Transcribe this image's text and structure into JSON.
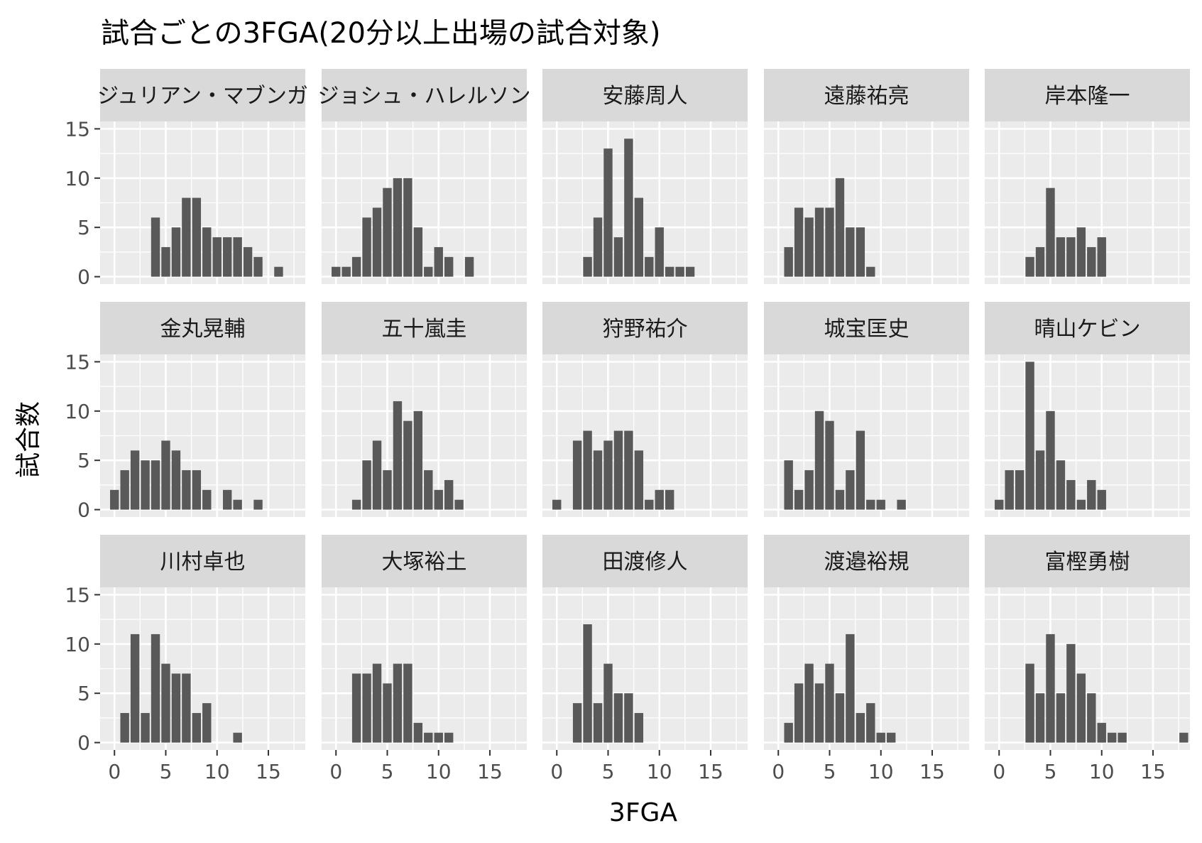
{
  "chart_data": {
    "type": "bar",
    "title": "試合ごとの3FGA(20分以上出場の試合対象)",
    "xlabel": "3FGA",
    "ylabel": "試合数",
    "xlim": [
      -1.4,
      18.6
    ],
    "ylim": [
      -0.75,
      15.75
    ],
    "x_ticks": [
      0,
      5,
      10,
      15
    ],
    "y_ticks": [
      0,
      5,
      10,
      15
    ],
    "x_tick_labels": [
      "0",
      "5",
      "10",
      "15"
    ],
    "y_tick_labels": [
      "0",
      "5",
      "10",
      "15"
    ],
    "grid": true,
    "bar_color": "#595959",
    "panel_color": "#ebebeb",
    "strip_color": "#d9d9d9",
    "panels": [
      {
        "name": "ジュリアン・マブンガ",
        "bars": [
          {
            "x": 4,
            "y": 6
          },
          {
            "x": 5,
            "y": 3
          },
          {
            "x": 6,
            "y": 5
          },
          {
            "x": 7,
            "y": 8
          },
          {
            "x": 8,
            "y": 8
          },
          {
            "x": 9,
            "y": 5
          },
          {
            "x": 10,
            "y": 4
          },
          {
            "x": 11,
            "y": 4
          },
          {
            "x": 12,
            "y": 4
          },
          {
            "x": 13,
            "y": 3
          },
          {
            "x": 14,
            "y": 2
          },
          {
            "x": 16,
            "y": 1
          }
        ]
      },
      {
        "name": "ジョシュ・ハレルソン",
        "bars": [
          {
            "x": 0,
            "y": 1
          },
          {
            "x": 1,
            "y": 1
          },
          {
            "x": 2,
            "y": 2
          },
          {
            "x": 3,
            "y": 6
          },
          {
            "x": 4,
            "y": 7
          },
          {
            "x": 5,
            "y": 9
          },
          {
            "x": 6,
            "y": 10
          },
          {
            "x": 7,
            "y": 10
          },
          {
            "x": 8,
            "y": 5
          },
          {
            "x": 9,
            "y": 1
          },
          {
            "x": 10,
            "y": 3
          },
          {
            "x": 11,
            "y": 2
          },
          {
            "x": 13,
            "y": 2
          }
        ]
      },
      {
        "name": "安藤周人",
        "bars": [
          {
            "x": 3,
            "y": 2
          },
          {
            "x": 4,
            "y": 6
          },
          {
            "x": 5,
            "y": 13
          },
          {
            "x": 6,
            "y": 4
          },
          {
            "x": 7,
            "y": 14
          },
          {
            "x": 8,
            "y": 8
          },
          {
            "x": 9,
            "y": 2
          },
          {
            "x": 10,
            "y": 5
          },
          {
            "x": 11,
            "y": 1
          },
          {
            "x": 12,
            "y": 1
          },
          {
            "x": 13,
            "y": 1
          }
        ]
      },
      {
        "name": "遠藤祐亮",
        "bars": [
          {
            "x": 1,
            "y": 3
          },
          {
            "x": 2,
            "y": 7
          },
          {
            "x": 3,
            "y": 6
          },
          {
            "x": 4,
            "y": 7
          },
          {
            "x": 5,
            "y": 7
          },
          {
            "x": 6,
            "y": 10
          },
          {
            "x": 7,
            "y": 5
          },
          {
            "x": 8,
            "y": 5
          },
          {
            "x": 9,
            "y": 1
          }
        ]
      },
      {
        "name": "岸本隆一",
        "bars": [
          {
            "x": 3,
            "y": 2
          },
          {
            "x": 4,
            "y": 3
          },
          {
            "x": 5,
            "y": 9
          },
          {
            "x": 6,
            "y": 4
          },
          {
            "x": 7,
            "y": 4
          },
          {
            "x": 8,
            "y": 5
          },
          {
            "x": 9,
            "y": 3
          },
          {
            "x": 10,
            "y": 4
          }
        ]
      },
      {
        "name": "金丸晃輔",
        "bars": [
          {
            "x": 0,
            "y": 2
          },
          {
            "x": 1,
            "y": 4
          },
          {
            "x": 2,
            "y": 6
          },
          {
            "x": 3,
            "y": 5
          },
          {
            "x": 4,
            "y": 5
          },
          {
            "x": 5,
            "y": 7
          },
          {
            "x": 6,
            "y": 6
          },
          {
            "x": 7,
            "y": 4
          },
          {
            "x": 8,
            "y": 4
          },
          {
            "x": 9,
            "y": 2
          },
          {
            "x": 11,
            "y": 2
          },
          {
            "x": 12,
            "y": 1
          },
          {
            "x": 14,
            "y": 1
          }
        ]
      },
      {
        "name": "五十嵐圭",
        "bars": [
          {
            "x": 2,
            "y": 1
          },
          {
            "x": 3,
            "y": 5
          },
          {
            "x": 4,
            "y": 7
          },
          {
            "x": 5,
            "y": 4
          },
          {
            "x": 6,
            "y": 11
          },
          {
            "x": 7,
            "y": 9
          },
          {
            "x": 8,
            "y": 10
          },
          {
            "x": 9,
            "y": 4
          },
          {
            "x": 10,
            "y": 2
          },
          {
            "x": 11,
            "y": 3
          },
          {
            "x": 12,
            "y": 1
          }
        ]
      },
      {
        "name": "狩野祐介",
        "bars": [
          {
            "x": 0,
            "y": 1
          },
          {
            "x": 2,
            "y": 7
          },
          {
            "x": 3,
            "y": 8
          },
          {
            "x": 4,
            "y": 6
          },
          {
            "x": 5,
            "y": 7
          },
          {
            "x": 6,
            "y": 8
          },
          {
            "x": 7,
            "y": 8
          },
          {
            "x": 8,
            "y": 6
          },
          {
            "x": 9,
            "y": 1
          },
          {
            "x": 10,
            "y": 2
          },
          {
            "x": 11,
            "y": 2
          }
        ]
      },
      {
        "name": "城宝匡史",
        "bars": [
          {
            "x": 1,
            "y": 5
          },
          {
            "x": 2,
            "y": 2
          },
          {
            "x": 3,
            "y": 4
          },
          {
            "x": 4,
            "y": 10
          },
          {
            "x": 5,
            "y": 9
          },
          {
            "x": 6,
            "y": 2
          },
          {
            "x": 7,
            "y": 4
          },
          {
            "x": 8,
            "y": 8
          },
          {
            "x": 9,
            "y": 1
          },
          {
            "x": 10,
            "y": 1
          },
          {
            "x": 12,
            "y": 1
          }
        ]
      },
      {
        "name": "晴山ケビン",
        "bars": [
          {
            "x": 0,
            "y": 1
          },
          {
            "x": 1,
            "y": 4
          },
          {
            "x": 2,
            "y": 4
          },
          {
            "x": 3,
            "y": 15
          },
          {
            "x": 4,
            "y": 6
          },
          {
            "x": 5,
            "y": 10
          },
          {
            "x": 6,
            "y": 5
          },
          {
            "x": 7,
            "y": 3
          },
          {
            "x": 8,
            "y": 1
          },
          {
            "x": 9,
            "y": 3
          },
          {
            "x": 10,
            "y": 2
          }
        ]
      },
      {
        "name": "川村卓也",
        "bars": [
          {
            "x": 1,
            "y": 3
          },
          {
            "x": 2,
            "y": 11
          },
          {
            "x": 3,
            "y": 3
          },
          {
            "x": 4,
            "y": 11
          },
          {
            "x": 5,
            "y": 8
          },
          {
            "x": 6,
            "y": 7
          },
          {
            "x": 7,
            "y": 7
          },
          {
            "x": 8,
            "y": 3
          },
          {
            "x": 9,
            "y": 4
          },
          {
            "x": 12,
            "y": 1
          }
        ]
      },
      {
        "name": "大塚裕土",
        "bars": [
          {
            "x": 2,
            "y": 7
          },
          {
            "x": 3,
            "y": 7
          },
          {
            "x": 4,
            "y": 8
          },
          {
            "x": 5,
            "y": 6
          },
          {
            "x": 6,
            "y": 8
          },
          {
            "x": 7,
            "y": 8
          },
          {
            "x": 8,
            "y": 2
          },
          {
            "x": 9,
            "y": 1
          },
          {
            "x": 10,
            "y": 1
          },
          {
            "x": 11,
            "y": 1
          }
        ]
      },
      {
        "name": "田渡修人",
        "bars": [
          {
            "x": 2,
            "y": 4
          },
          {
            "x": 3,
            "y": 12
          },
          {
            "x": 4,
            "y": 4
          },
          {
            "x": 5,
            "y": 8
          },
          {
            "x": 6,
            "y": 5
          },
          {
            "x": 7,
            "y": 5
          },
          {
            "x": 8,
            "y": 3
          }
        ]
      },
      {
        "name": "渡邉裕規",
        "bars": [
          {
            "x": 1,
            "y": 2
          },
          {
            "x": 2,
            "y": 6
          },
          {
            "x": 3,
            "y": 8
          },
          {
            "x": 4,
            "y": 6
          },
          {
            "x": 5,
            "y": 8
          },
          {
            "x": 6,
            "y": 5
          },
          {
            "x": 7,
            "y": 11
          },
          {
            "x": 8,
            "y": 3
          },
          {
            "x": 9,
            "y": 4
          },
          {
            "x": 10,
            "y": 1
          },
          {
            "x": 11,
            "y": 1
          }
        ]
      },
      {
        "name": "富樫勇樹",
        "bars": [
          {
            "x": 3,
            "y": 8
          },
          {
            "x": 4,
            "y": 5
          },
          {
            "x": 5,
            "y": 11
          },
          {
            "x": 6,
            "y": 5
          },
          {
            "x": 7,
            "y": 10
          },
          {
            "x": 8,
            "y": 7
          },
          {
            "x": 9,
            "y": 5
          },
          {
            "x": 10,
            "y": 2
          },
          {
            "x": 11,
            "y": 1
          },
          {
            "x": 12,
            "y": 1
          },
          {
            "x": 18,
            "y": 1
          }
        ]
      }
    ]
  }
}
